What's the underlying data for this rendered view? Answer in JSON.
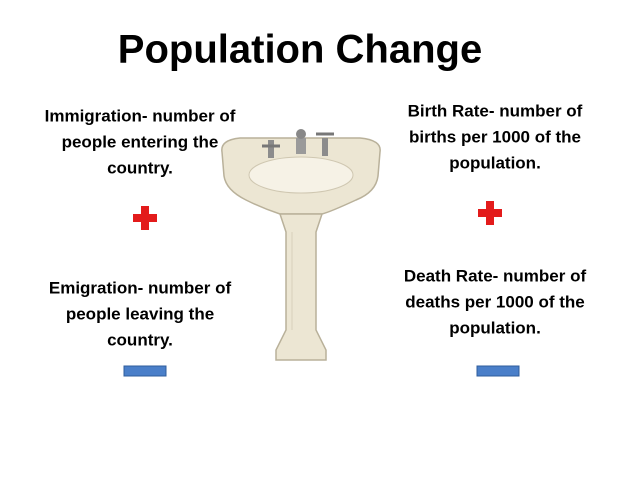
{
  "title": "Population Change",
  "blocks": {
    "immigration": [
      "Immigration- number of",
      "people entering the",
      "country."
    ],
    "birth_rate": [
      "Birth Rate- number of",
      "births per 1000 of the",
      "population."
    ],
    "emigration": [
      "Emigration- number of",
      "people leaving the",
      "country."
    ],
    "death_rate": [
      "Death Rate- number of",
      "deaths per 1000 of the",
      "population."
    ]
  }
}
